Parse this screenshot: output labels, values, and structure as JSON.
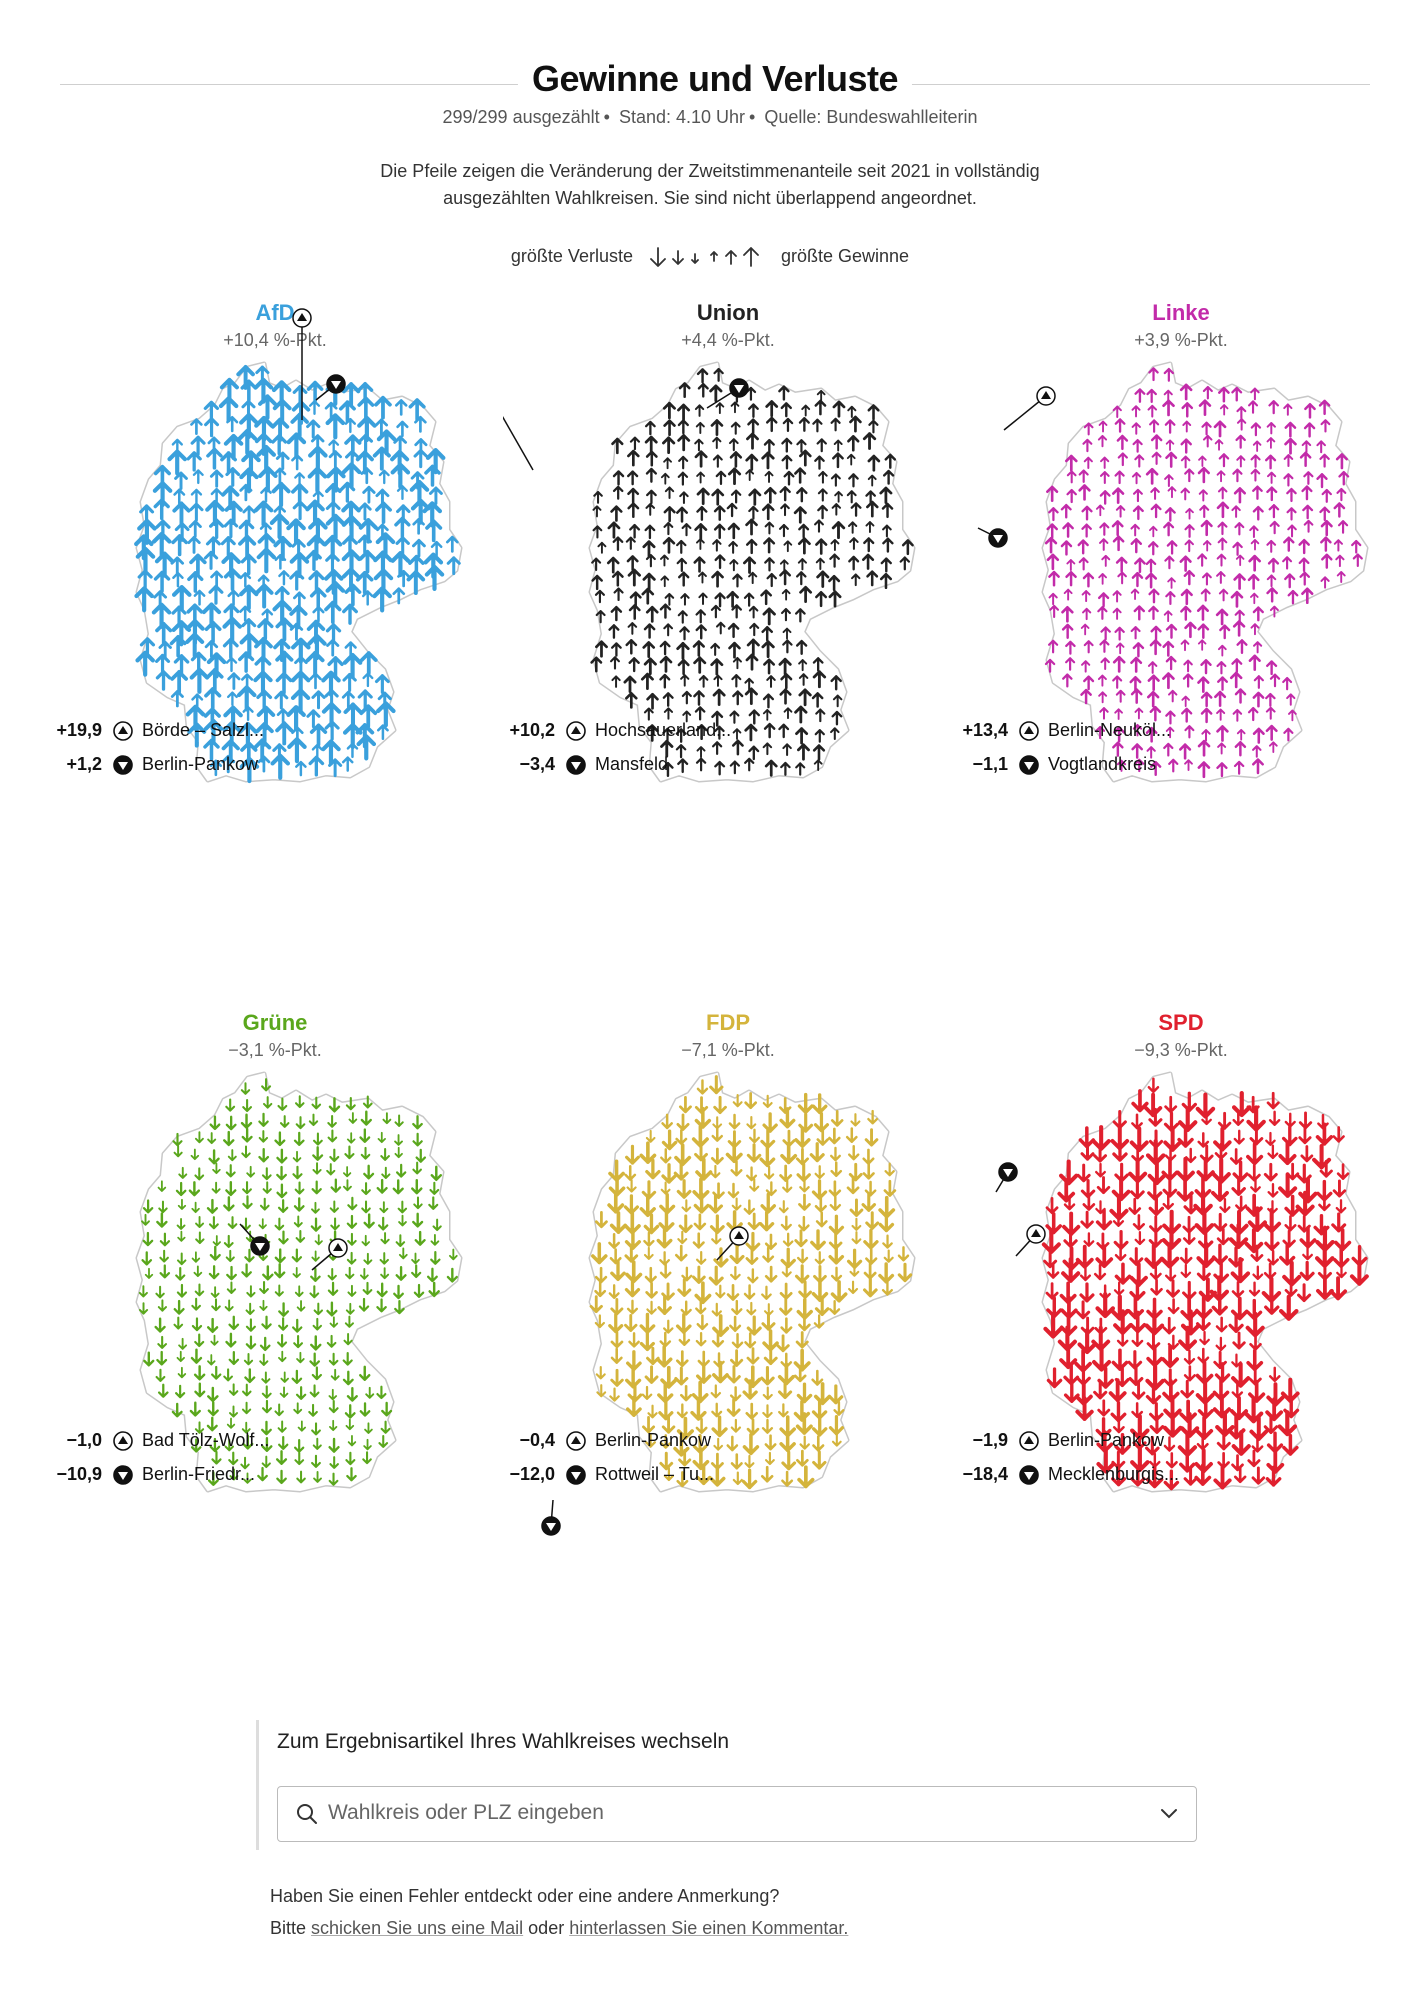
{
  "header": {
    "title": "Gewinne und Verluste",
    "counted": "299/299 ausgezählt",
    "stand": "Stand: 4.10 Uhr",
    "source": "Quelle: Bundeswahlleiterin",
    "intro": "Die Pfeile zeigen die Veränderung der Zweitstimmenanteile seit 2021 in vollständig ausgezählten Wahlkreisen. Sie sind nicht überlappend angeordnet."
  },
  "legend": {
    "left": "größte Verluste",
    "right": "größte Gewinne"
  },
  "chart_data": [
    {
      "type": "arrow-map",
      "party": "AfD",
      "color": "#3aa0dc",
      "change": "+10,4 %-Pkt.",
      "change_value": 10.4,
      "max": {
        "value": "+19,9",
        "wahlkreis": "Börde – Salzl..."
      },
      "min": {
        "value": "+1,2",
        "wahlkreis": "Berlin-Pankow"
      }
    },
    {
      "type": "arrow-map",
      "party": "Union",
      "color": "#222222",
      "change": "+4,4 %-Pkt.",
      "change_value": 4.4,
      "max": {
        "value": "+10,2",
        "wahlkreis": "Hochsauerland..."
      },
      "min": {
        "value": "−3,4",
        "wahlkreis": "Mansfeld"
      }
    },
    {
      "type": "arrow-map",
      "party": "Linke",
      "color": "#c22ba9",
      "change": "+3,9 %-Pkt.",
      "change_value": 3.9,
      "max": {
        "value": "+13,4",
        "wahlkreis": "Berlin-Neuköl..."
      },
      "min": {
        "value": "−1,1",
        "wahlkreis": "Vogtlandkreis"
      }
    },
    {
      "type": "arrow-map",
      "party": "Grüne",
      "color": "#5aa71c",
      "change": "−3,1 %-Pkt.",
      "change_value": -3.1,
      "max": {
        "value": "−1,0",
        "wahlkreis": "Bad Tölz-Wolf..."
      },
      "min": {
        "value": "−10,9",
        "wahlkreis": "Berlin-Friedr..."
      }
    },
    {
      "type": "arrow-map",
      "party": "FDP",
      "color": "#d4b43c",
      "change": "−7,1 %-Pkt.",
      "change_value": -7.1,
      "max": {
        "value": "−0,4",
        "wahlkreis": "Berlin-Pankow"
      },
      "min": {
        "value": "−12,0",
        "wahlkreis": "Rottweil – Tu..."
      }
    },
    {
      "type": "arrow-map",
      "party": "SPD",
      "color": "#e0202e",
      "change": "−9,3 %-Pkt.",
      "change_value": -9.3,
      "max": {
        "value": "−1,9",
        "wahlkreis": "Berlin-Pankow"
      },
      "min": {
        "value": "−18,4",
        "wahlkreis": "Mecklenburgis..."
      }
    }
  ],
  "search": {
    "label": "Zum Ergebnisartikel Ihres Wahlkreises wechseln",
    "placeholder": "Wahlkreis oder PLZ eingeben"
  },
  "footer": {
    "line1": "Haben Sie einen Fehler entdeckt oder eine andere Anmerkung?",
    "bitte": "Bitte",
    "mail_link": "schicken Sie uns eine Mail",
    "oder": "oder",
    "comment_link": "hinterlassen Sie einen Kommentar."
  }
}
